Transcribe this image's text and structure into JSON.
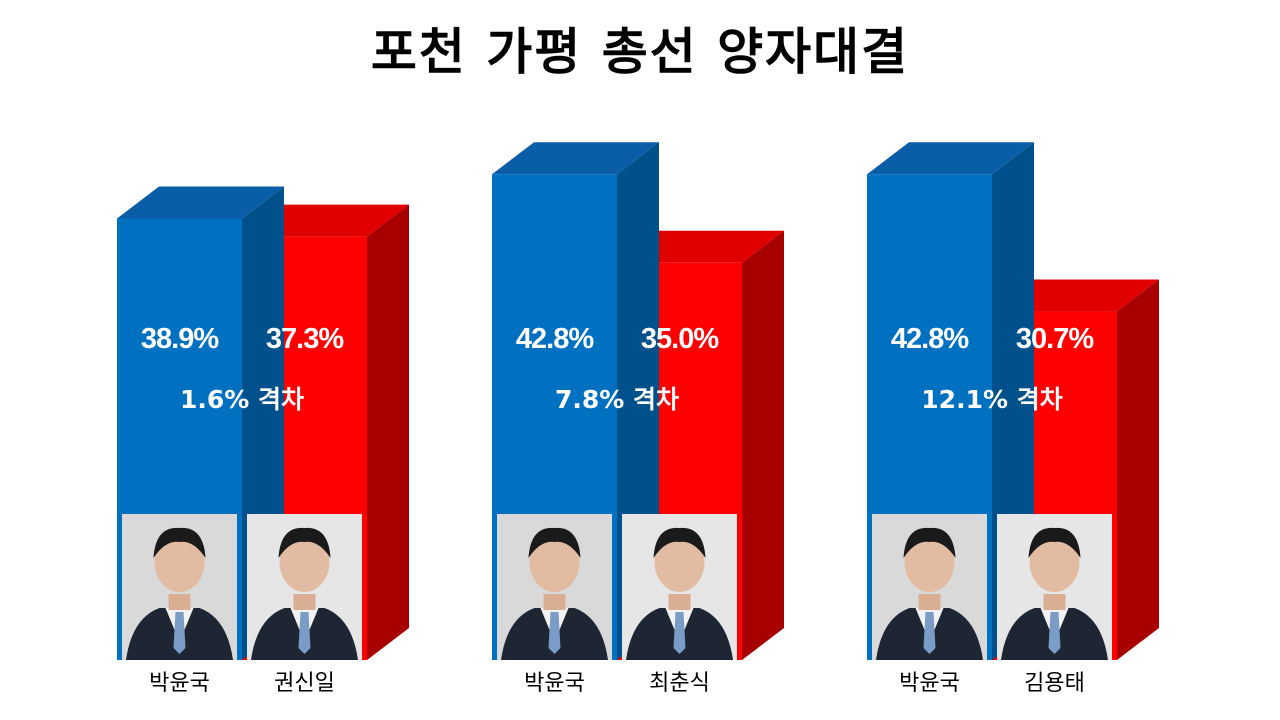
{
  "title": "포천 가평 총선 양자대결",
  "colors": {
    "blue_front": "#0070c0",
    "blue_top": "#0a5ea8",
    "blue_side": "#00508c",
    "red_front": "#ff0000",
    "red_top": "#e00000",
    "red_side": "#a80000",
    "photo_bg": "#d9d9d9",
    "suit": "#1e2533"
  },
  "chart_data": {
    "type": "bar",
    "style": "3d-grouped",
    "groups": [
      {
        "candidates": [
          {
            "name": "박윤국",
            "value": 38.9,
            "label": "38.9%",
            "color": "blue",
            "photo": "photo-박윤국"
          },
          {
            "name": "권신일",
            "value": 37.3,
            "label": "37.3%",
            "color": "red",
            "photo": "photo-권신일"
          }
        ],
        "gap_label": "1.6% 격차"
      },
      {
        "candidates": [
          {
            "name": "박윤국",
            "value": 42.8,
            "label": "42.8%",
            "color": "blue",
            "photo": "photo-박윤국"
          },
          {
            "name": "최춘식",
            "value": 35.0,
            "label": "35.0%",
            "color": "red",
            "photo": "photo-최춘식"
          }
        ],
        "gap_label": "7.8% 격차"
      },
      {
        "candidates": [
          {
            "name": "박윤국",
            "value": 42.8,
            "label": "42.8%",
            "color": "blue",
            "photo": "photo-박윤국"
          },
          {
            "name": "김용태",
            "value": 30.7,
            "label": "30.7%",
            "color": "red",
            "photo": "photo-김용태"
          }
        ],
        "gap_label": "12.1% 격차"
      }
    ]
  }
}
